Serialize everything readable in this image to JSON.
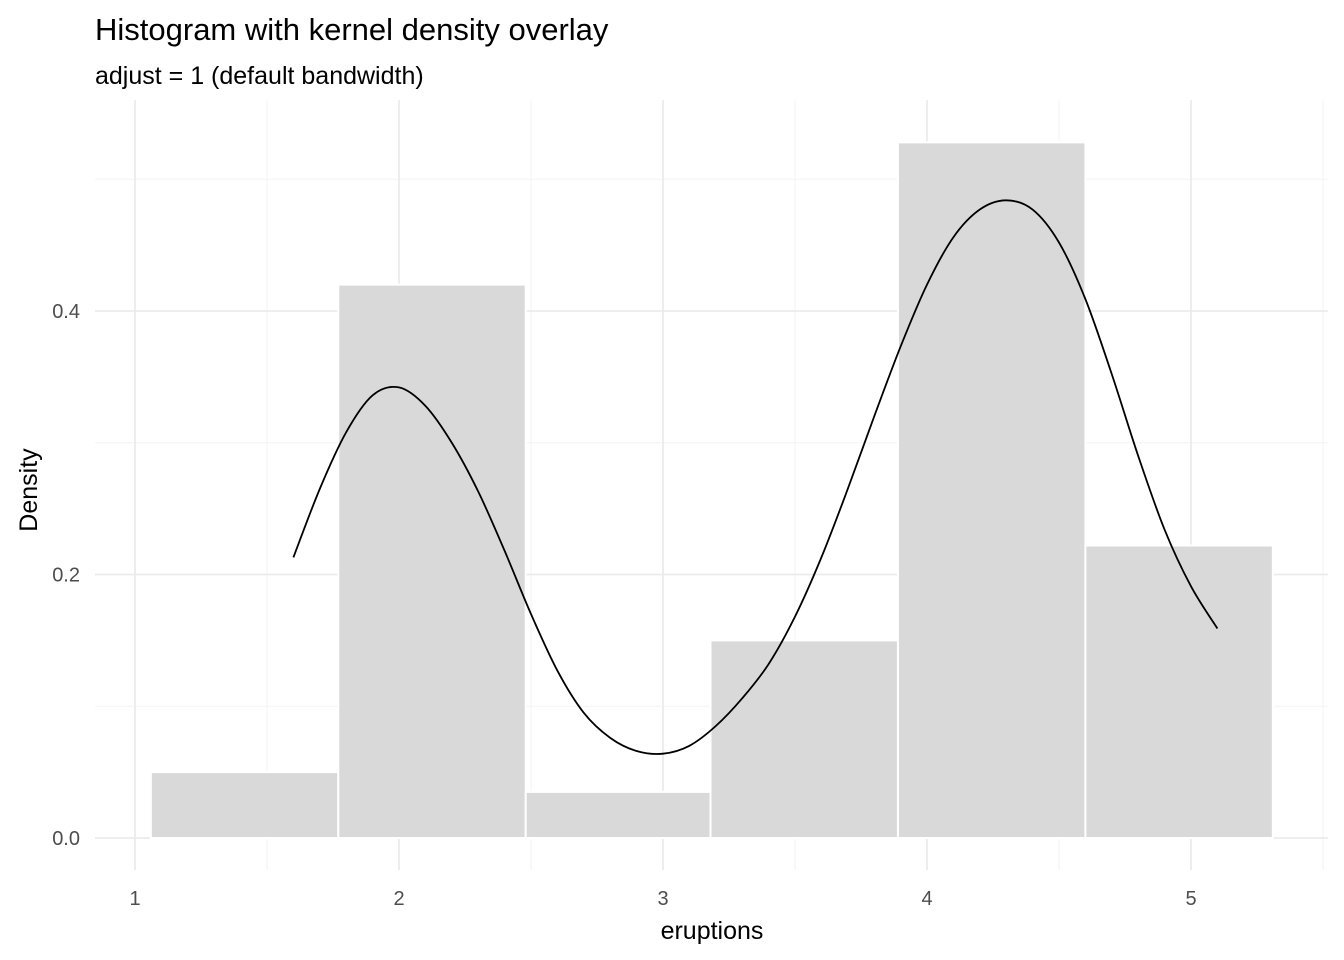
{
  "chart_data": {
    "type": "bar",
    "title": "Histogram with kernel density overlay",
    "subtitle": "adjust = 1 (default bandwidth)",
    "xlabel": "eruptions",
    "ylabel": "Density",
    "xlim": [
      1,
      5.5
    ],
    "ylim": [
      -0.025,
      0.555
    ],
    "x_ticks": [
      1,
      2,
      3,
      4,
      5
    ],
    "y_ticks": [
      0.0,
      0.2,
      0.4
    ],
    "x_tick_labels": [
      "1",
      "2",
      "3",
      "4",
      "5"
    ],
    "y_tick_labels": [
      "0.0",
      "0.2",
      "0.4"
    ],
    "x_minor_ticks": [
      1.5,
      2.5,
      3.5,
      4.5,
      5.5
    ],
    "y_minor_ticks": [
      0.1,
      0.3,
      0.5
    ],
    "grid": true,
    "histogram": {
      "bins": [
        {
          "x0": 1.06,
          "x1": 1.77,
          "density": 0.05
        },
        {
          "x0": 1.77,
          "x1": 2.48,
          "density": 0.42
        },
        {
          "x0": 2.48,
          "x1": 3.18,
          "density": 0.035
        },
        {
          "x0": 3.18,
          "x1": 3.89,
          "density": 0.15
        },
        {
          "x0": 3.89,
          "x1": 4.6,
          "density": 0.528
        },
        {
          "x0": 4.6,
          "x1": 5.31,
          "density": 0.222
        }
      ],
      "fill": "#d9d9d9",
      "border": "#ffffff"
    },
    "density_curve": {
      "color": "#000000",
      "x": [
        1.6,
        1.7,
        1.8,
        1.9,
        2.0,
        2.1,
        2.2,
        2.3,
        2.4,
        2.5,
        2.6,
        2.7,
        2.8,
        2.9,
        3.0,
        3.1,
        3.2,
        3.3,
        3.4,
        3.5,
        3.6,
        3.7,
        3.8,
        3.9,
        4.0,
        4.1,
        4.2,
        4.3,
        4.4,
        4.5,
        4.6,
        4.7,
        4.8,
        4.9,
        5.0,
        5.1
      ],
      "y": [
        0.213,
        0.265,
        0.308,
        0.336,
        0.342,
        0.328,
        0.3,
        0.263,
        0.218,
        0.17,
        0.127,
        0.095,
        0.076,
        0.066,
        0.064,
        0.07,
        0.085,
        0.106,
        0.132,
        0.168,
        0.213,
        0.265,
        0.32,
        0.373,
        0.42,
        0.456,
        0.477,
        0.484,
        0.477,
        0.452,
        0.409,
        0.352,
        0.29,
        0.234,
        0.191,
        0.159
      ]
    }
  }
}
